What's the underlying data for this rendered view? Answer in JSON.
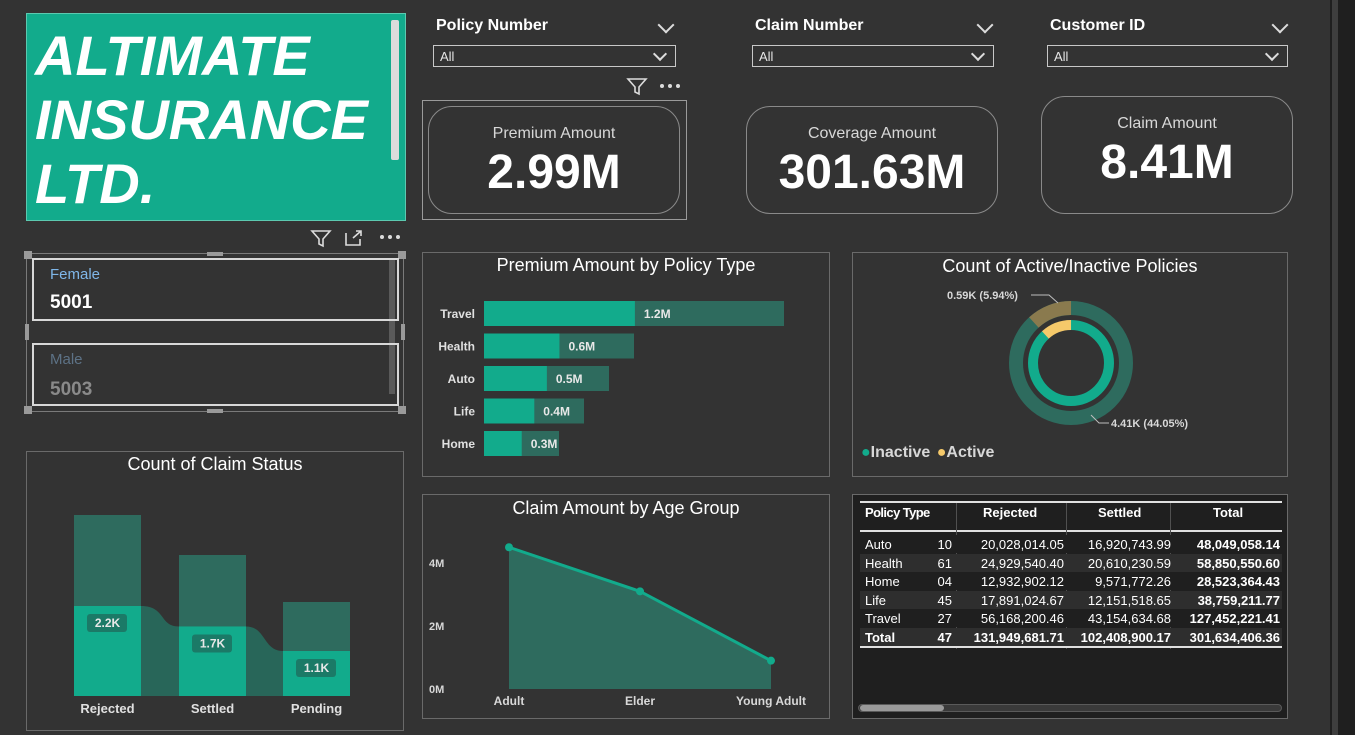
{
  "brand": {
    "logo_text": "ALTIMATE\nINSURANCE\nLTD.",
    "accent": "#12ab8c",
    "accent_dark": "#2e6b5e"
  },
  "slicers": [
    {
      "label": "Policy Number",
      "value": "All"
    },
    {
      "label": "Claim Number",
      "value": "All"
    },
    {
      "label": "Customer ID",
      "value": "All"
    }
  ],
  "kpis": [
    {
      "title": "Premium Amount",
      "value": "2.99M"
    },
    {
      "title": "Coverage Amount",
      "value": "301.63M"
    },
    {
      "title": "Claim Amount",
      "value": "8.41M"
    }
  ],
  "gender": [
    {
      "label": "Female",
      "value": "5001"
    },
    {
      "label": "Male",
      "value": "5003"
    }
  ],
  "visual_header_icons": [
    "filter-icon",
    "focus-mode-icon",
    "more-options-icon"
  ],
  "premium_chart": {
    "type": "bar",
    "title": "Premium Amount by Policy Type",
    "categories": [
      "Travel",
      "Health",
      "Auto",
      "Life",
      "Home"
    ],
    "values": [
      1.2,
      0.6,
      0.5,
      0.4,
      0.3
    ],
    "labels": [
      "1.2M",
      "0.6M",
      "0.5M",
      "0.4M",
      "0.3M"
    ],
    "unit": "M"
  },
  "donut_chart": {
    "type": "pie",
    "title": "Count of Active/Inactive Policies",
    "slices": [
      {
        "name": "Inactive",
        "label": "4.41K (44.05%)",
        "value": 4.41,
        "color": "#12ab8c"
      },
      {
        "name": "Active",
        "label": "0.59K (5.94%)",
        "value": 0.59,
        "color": "#f5c96a"
      }
    ],
    "legend": [
      "Inactive",
      "Active"
    ]
  },
  "claim_status_chart": {
    "type": "bar",
    "title": "Count of Claim Status",
    "categories": [
      "Rejected",
      "Settled",
      "Pending"
    ],
    "values": [
      2.2,
      1.7,
      1.1
    ],
    "labels": [
      "2.2K",
      "1.7K",
      "1.1K"
    ],
    "unit": "K"
  },
  "age_chart": {
    "type": "area",
    "title": "Claim Amount by Age Group",
    "categories": [
      "Adult",
      "Elder",
      "Young Adult"
    ],
    "values": [
      4.5,
      3.1,
      0.9
    ],
    "y_ticks": [
      "0M",
      "2M",
      "4M"
    ],
    "ylim": [
      0,
      5
    ]
  },
  "claims_table": {
    "headers": [
      "Policy Type",
      "Rejected",
      "Settled",
      "Total"
    ],
    "partial_column": [
      "10",
      "61",
      "04",
      "45",
      "27",
      "47"
    ],
    "rows": [
      [
        "Auto",
        "20,028,014.05",
        "16,920,743.99",
        "48,049,058.14"
      ],
      [
        "Health",
        "24,929,540.40",
        "20,610,230.59",
        "58,850,550.60"
      ],
      [
        "Home",
        "12,932,902.12",
        "9,571,772.26",
        "28,523,364.43"
      ],
      [
        "Life",
        "17,891,024.67",
        "12,151,518.65",
        "38,759,211.77"
      ],
      [
        "Travel",
        "56,168,200.46",
        "43,154,634.68",
        "127,452,221.41"
      ]
    ],
    "total": [
      "Total",
      "131,949,681.71",
      "102,408,900.17",
      "301,634,406.36"
    ]
  }
}
